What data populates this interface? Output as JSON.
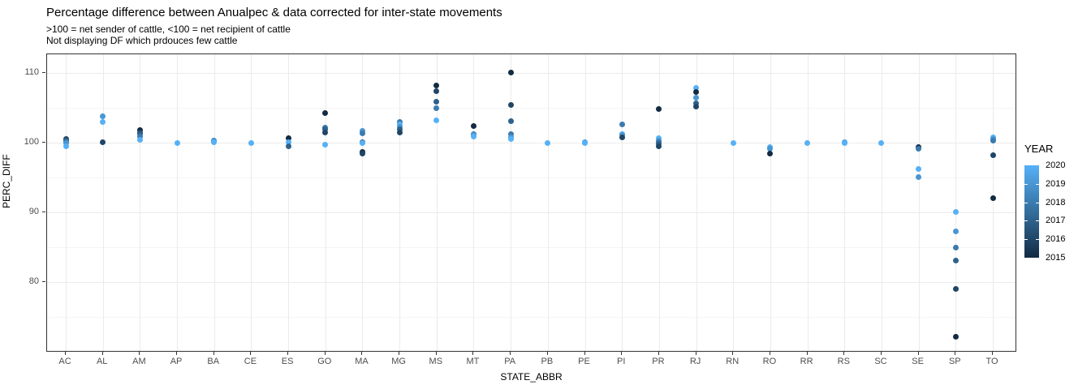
{
  "header": {
    "title": "Percentage difference between Anualpec & data corrected for inter-state movements",
    "subtitle_line1": ">100 = net sender of cattle, <100 = net recipient of cattle",
    "subtitle_line2": "Not displaying DF which prdouces few cattle"
  },
  "chart_data": {
    "type": "scatter",
    "title": "Percentage difference between Anualpec & data corrected for inter-state movements",
    "subtitle": [
      ">100 = net sender of cattle, <100 = net recipient of cattle",
      "Not displaying DF which prdouces few cattle"
    ],
    "xlabel": "STATE_ABBR",
    "ylabel": "PERC_DIFF",
    "x_categories": [
      "AC",
      "AL",
      "AM",
      "AP",
      "BA",
      "CE",
      "ES",
      "GO",
      "MA",
      "MG",
      "MS",
      "MT",
      "PA",
      "PB",
      "PE",
      "PI",
      "PR",
      "RJ",
      "RN",
      "RO",
      "RR",
      "RS",
      "SC",
      "SE",
      "SP",
      "TO"
    ],
    "ylim": [
      69.9,
      112.7
    ],
    "yticks": [
      80,
      90,
      100,
      110
    ],
    "yticks_minor": [
      75,
      85,
      95,
      105
    ],
    "grid": true,
    "legend": {
      "title": "YEAR",
      "position": "right",
      "labels": [
        "2020",
        "2019",
        "2018",
        "2017",
        "2016",
        "2015"
      ],
      "gradient_high_color": "#56B1F7",
      "gradient_low_color": "#132B43"
    },
    "year_colors": {
      "2015": "#132B43",
      "2016": "#204566",
      "2017": "#2E618B",
      "2018": "#3B7BAF",
      "2019": "#4996D3",
      "2020": "#56B1F7"
    },
    "points": [
      {
        "state": "AC",
        "year": 2016,
        "value": 100.6
      },
      {
        "state": "AC",
        "year": 2017,
        "value": 100.3
      },
      {
        "state": "AC",
        "year": 2018,
        "value": 100.1
      },
      {
        "state": "AC",
        "year": 2019,
        "value": 100.0
      },
      {
        "state": "AC",
        "year": 2020,
        "value": 99.5
      },
      {
        "state": "AL",
        "year": 2019,
        "value": 103.8
      },
      {
        "state": "AL",
        "year": 2020,
        "value": 103.0
      },
      {
        "state": "AL",
        "year": 2016,
        "value": 100.1
      },
      {
        "state": "AM",
        "year": 2015,
        "value": 101.8
      },
      {
        "state": "AM",
        "year": 2016,
        "value": 101.5
      },
      {
        "state": "AM",
        "year": 2017,
        "value": 101.2
      },
      {
        "state": "AM",
        "year": 2018,
        "value": 100.9
      },
      {
        "state": "AM",
        "year": 2020,
        "value": 100.4
      },
      {
        "state": "AP",
        "year": 2020,
        "value": 100.0
      },
      {
        "state": "BA",
        "year": 2018,
        "value": 100.3
      },
      {
        "state": "BA",
        "year": 2019,
        "value": 100.2
      },
      {
        "state": "BA",
        "year": 2020,
        "value": 100.1
      },
      {
        "state": "CE",
        "year": 2020,
        "value": 100.0
      },
      {
        "state": "ES",
        "year": 2015,
        "value": 100.7
      },
      {
        "state": "ES",
        "year": 2020,
        "value": 100.1
      },
      {
        "state": "ES",
        "year": 2017,
        "value": 99.5
      },
      {
        "state": "GO",
        "year": 2015,
        "value": 104.3
      },
      {
        "state": "GO",
        "year": 2018,
        "value": 102.2
      },
      {
        "state": "GO",
        "year": 2017,
        "value": 101.9
      },
      {
        "state": "GO",
        "year": 2016,
        "value": 101.5
      },
      {
        "state": "GO",
        "year": 2020,
        "value": 99.7
      },
      {
        "state": "MA",
        "year": 2019,
        "value": 101.7
      },
      {
        "state": "MA",
        "year": 2018,
        "value": 101.4
      },
      {
        "state": "MA",
        "year": 2017,
        "value": 100.1
      },
      {
        "state": "MA",
        "year": 2020,
        "value": 100.0
      },
      {
        "state": "MA",
        "year": 2015,
        "value": 98.7
      },
      {
        "state": "MA",
        "year": 2016,
        "value": 98.4
      },
      {
        "state": "MG",
        "year": 2018,
        "value": 103.0
      },
      {
        "state": "MG",
        "year": 2020,
        "value": 102.6
      },
      {
        "state": "MG",
        "year": 2019,
        "value": 102.3
      },
      {
        "state": "MG",
        "year": 2017,
        "value": 101.9
      },
      {
        "state": "MG",
        "year": 2016,
        "value": 101.5
      },
      {
        "state": "MS",
        "year": 2015,
        "value": 108.2
      },
      {
        "state": "MS",
        "year": 2016,
        "value": 107.4
      },
      {
        "state": "MS",
        "year": 2017,
        "value": 105.9
      },
      {
        "state": "MS",
        "year": 2018,
        "value": 105.0
      },
      {
        "state": "MS",
        "year": 2020,
        "value": 103.2
      },
      {
        "state": "MT",
        "year": 2015,
        "value": 102.4
      },
      {
        "state": "MT",
        "year": 2018,
        "value": 101.3
      },
      {
        "state": "MT",
        "year": 2019,
        "value": 101.1
      },
      {
        "state": "MT",
        "year": 2020,
        "value": 100.9
      },
      {
        "state": "PA",
        "year": 2015,
        "value": 110.1
      },
      {
        "state": "PA",
        "year": 2016,
        "value": 105.4
      },
      {
        "state": "PA",
        "year": 2017,
        "value": 103.1
      },
      {
        "state": "PA",
        "year": 2018,
        "value": 101.2
      },
      {
        "state": "PA",
        "year": 2019,
        "value": 100.8
      },
      {
        "state": "PA",
        "year": 2020,
        "value": 100.5
      },
      {
        "state": "PB",
        "year": 2020,
        "value": 100.0
      },
      {
        "state": "PE",
        "year": 2019,
        "value": 100.1
      },
      {
        "state": "PE",
        "year": 2020,
        "value": 100.0
      },
      {
        "state": "PI",
        "year": 2018,
        "value": 102.6
      },
      {
        "state": "PI",
        "year": 2020,
        "value": 101.3
      },
      {
        "state": "PI",
        "year": 2019,
        "value": 101.1
      },
      {
        "state": "PI",
        "year": 2016,
        "value": 100.8
      },
      {
        "state": "PR",
        "year": 2015,
        "value": 104.9
      },
      {
        "state": "PR",
        "year": 2020,
        "value": 100.7
      },
      {
        "state": "PR",
        "year": 2019,
        "value": 100.3
      },
      {
        "state": "PR",
        "year": 2018,
        "value": 100.1
      },
      {
        "state": "PR",
        "year": 2017,
        "value": 99.8
      },
      {
        "state": "PR",
        "year": 2016,
        "value": 99.5
      },
      {
        "state": "RJ",
        "year": 2020,
        "value": 107.9
      },
      {
        "state": "RJ",
        "year": 2015,
        "value": 107.3
      },
      {
        "state": "RJ",
        "year": 2019,
        "value": 106.5
      },
      {
        "state": "RJ",
        "year": 2017,
        "value": 105.7
      },
      {
        "state": "RJ",
        "year": 2016,
        "value": 105.2
      },
      {
        "state": "RN",
        "year": 2020,
        "value": 100.0
      },
      {
        "state": "RO",
        "year": 2020,
        "value": 99.4
      },
      {
        "state": "RO",
        "year": 2019,
        "value": 99.2
      },
      {
        "state": "RO",
        "year": 2015,
        "value": 98.4
      },
      {
        "state": "RR",
        "year": 2020,
        "value": 100.0
      },
      {
        "state": "RS",
        "year": 2019,
        "value": 100.1
      },
      {
        "state": "RS",
        "year": 2020,
        "value": 100.0
      },
      {
        "state": "SC",
        "year": 2020,
        "value": 100.0
      },
      {
        "state": "SE",
        "year": 2015,
        "value": 99.4
      },
      {
        "state": "SE",
        "year": 2018,
        "value": 99.2
      },
      {
        "state": "SE",
        "year": 2020,
        "value": 96.2
      },
      {
        "state": "SE",
        "year": 2019,
        "value": 95.1
      },
      {
        "state": "SP",
        "year": 2020,
        "value": 90.1
      },
      {
        "state": "SP",
        "year": 2019,
        "value": 87.3
      },
      {
        "state": "SP",
        "year": 2018,
        "value": 85.0
      },
      {
        "state": "SP",
        "year": 2017,
        "value": 83.1
      },
      {
        "state": "SP",
        "year": 2016,
        "value": 79.0
      },
      {
        "state": "SP",
        "year": 2015,
        "value": 72.2
      },
      {
        "state": "TO",
        "year": 2020,
        "value": 100.8
      },
      {
        "state": "TO",
        "year": 2019,
        "value": 100.5
      },
      {
        "state": "TO",
        "year": 2018,
        "value": 100.3
      },
      {
        "state": "TO",
        "year": 2016,
        "value": 98.2
      },
      {
        "state": "TO",
        "year": 2015,
        "value": 92.1
      }
    ]
  }
}
